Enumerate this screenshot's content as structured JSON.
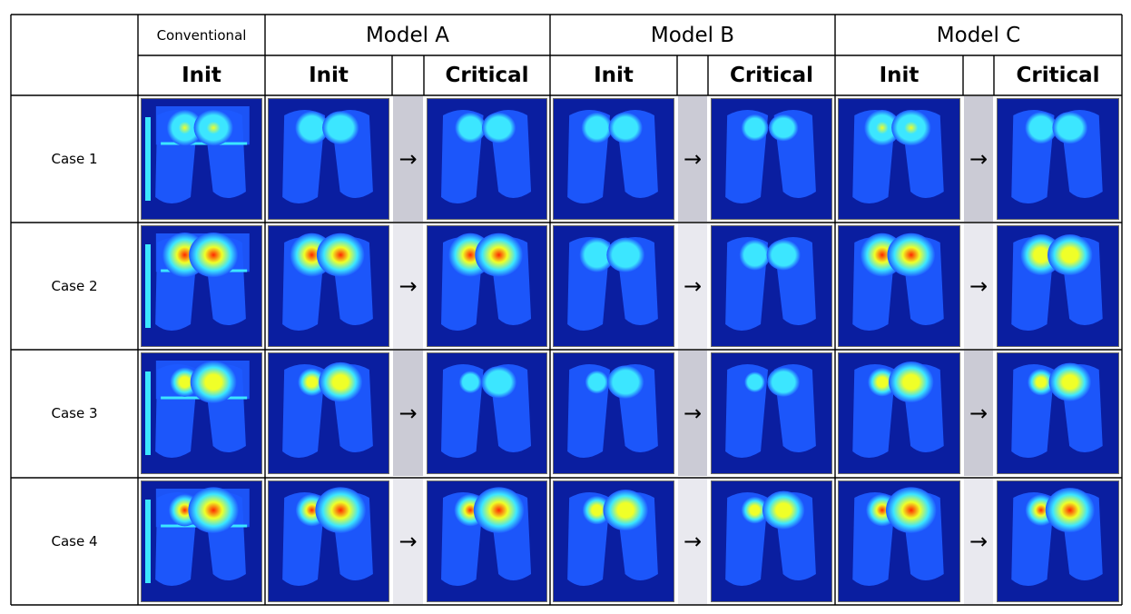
{
  "table": {
    "header_top": {
      "conventional": "Conventional",
      "model_a": "Model A",
      "model_b": "Model B",
      "model_c": "Model C"
    },
    "header_sub": {
      "conventional_init": "Init",
      "model_a_init": "Init",
      "model_a_critical": "Critical",
      "model_b_init": "Init",
      "model_b_critical": "Critical",
      "model_c_init": "Init",
      "model_c_critical": "Critical"
    },
    "rows": [
      {
        "label": "Case 1"
      },
      {
        "label": "Case 2"
      },
      {
        "label": "Case 3"
      },
      {
        "label": "Case 4"
      }
    ],
    "arrow_glyph": "→",
    "colors": {
      "heatmap_background": "#0a1ea0",
      "heatmap_low": "#1e5aff",
      "heatmap_mid": "#3ce6ff",
      "heatmap_high_yellow": "#f0ff28",
      "heatmap_hot": "#ff2800",
      "arrow_gap_dark": "#cbcbd5",
      "arrow_gap_light": "#e9e9ef"
    }
  }
}
